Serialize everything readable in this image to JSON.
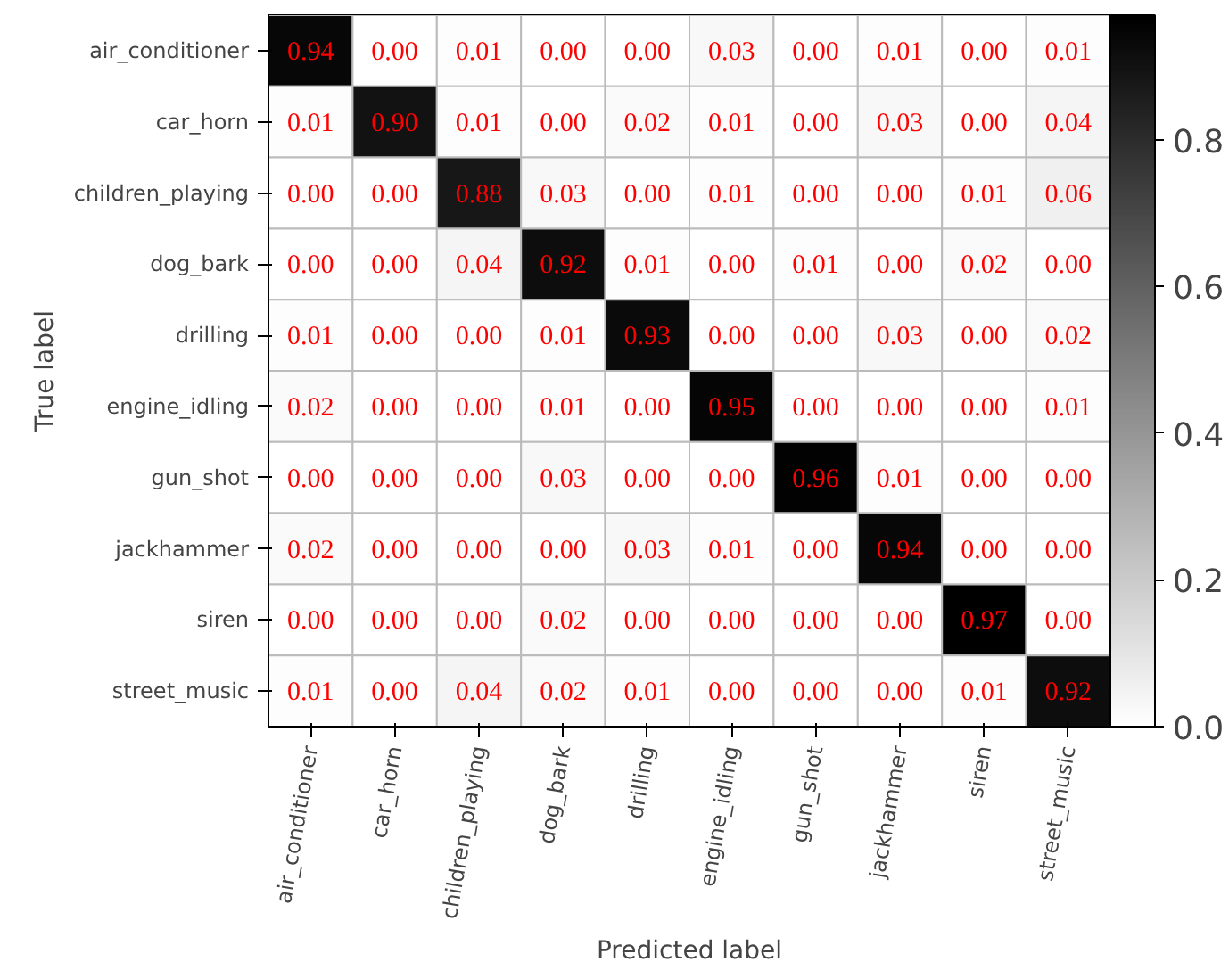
{
  "chart_data": {
    "type": "heatmap",
    "xlabel": "Predicted label",
    "ylabel": "True label",
    "categories": [
      "air_conditioner",
      "car_horn",
      "children_playing",
      "dog_bark",
      "drilling",
      "engine_idling",
      "gun_shot",
      "jackhammer",
      "siren",
      "street_music"
    ],
    "y_categories": [
      "air_conditioner",
      "car_horn",
      "children_playing",
      "dog_bark",
      "drilling",
      "engine_idling",
      "gun_shot",
      "jackhammer",
      "siren",
      "street_music"
    ],
    "cells": [
      [
        0.94,
        0.0,
        0.01,
        0.0,
        0.0,
        0.03,
        0.0,
        0.01,
        0.0,
        0.01
      ],
      [
        0.01,
        0.9,
        0.01,
        0.0,
        0.02,
        0.01,
        0.0,
        0.03,
        0.0,
        0.04
      ],
      [
        0.0,
        0.0,
        0.88,
        0.03,
        0.0,
        0.01,
        0.0,
        0.0,
        0.01,
        0.06
      ],
      [
        0.0,
        0.0,
        0.04,
        0.92,
        0.01,
        0.0,
        0.01,
        0.0,
        0.02,
        0.0
      ],
      [
        0.01,
        0.0,
        0.0,
        0.01,
        0.93,
        0.0,
        0.0,
        0.03,
        0.0,
        0.02
      ],
      [
        0.02,
        0.0,
        0.0,
        0.01,
        0.0,
        0.95,
        0.0,
        0.0,
        0.0,
        0.01
      ],
      [
        0.0,
        0.0,
        0.0,
        0.03,
        0.0,
        0.0,
        0.96,
        0.01,
        0.0,
        0.0
      ],
      [
        0.02,
        0.0,
        0.0,
        0.0,
        0.03,
        0.01,
        0.0,
        0.94,
        0.0,
        0.0
      ],
      [
        0.0,
        0.0,
        0.0,
        0.02,
        0.0,
        0.0,
        0.0,
        0.0,
        0.97,
        0.0
      ],
      [
        0.01,
        0.0,
        0.04,
        0.02,
        0.01,
        0.0,
        0.0,
        0.0,
        0.01,
        0.92
      ]
    ],
    "cell_labels": [
      [
        "0.94",
        "0.00",
        "0.01",
        "0.00",
        "0.00",
        "0.03",
        "0.00",
        "0.01",
        "0.00",
        "0.01"
      ],
      [
        "0.01",
        "0.90",
        "0.01",
        "0.00",
        "0.02",
        "0.01",
        "0.00",
        "0.03",
        "0.00",
        "0.04"
      ],
      [
        "0.00",
        "0.00",
        "0.88",
        "0.03",
        "0.00",
        "0.01",
        "0.00",
        "0.00",
        "0.01",
        "0.06"
      ],
      [
        "0.00",
        "0.00",
        "0.04",
        "0.92",
        "0.01",
        "0.00",
        "0.01",
        "0.00",
        "0.02",
        "0.00"
      ],
      [
        "0.01",
        "0.00",
        "0.00",
        "0.01",
        "0.93",
        "0.00",
        "0.00",
        "0.03",
        "0.00",
        "0.02"
      ],
      [
        "0.02",
        "0.00",
        "0.00",
        "0.01",
        "0.00",
        "0.95",
        "0.00",
        "0.00",
        "0.00",
        "0.01"
      ],
      [
        "0.00",
        "0.00",
        "0.00",
        "0.03",
        "0.00",
        "0.00",
        "0.96",
        "0.01",
        "0.00",
        "0.00"
      ],
      [
        "0.02",
        "0.00",
        "0.00",
        "0.00",
        "0.03",
        "0.01",
        "0.00",
        "0.94",
        "0.00",
        "0.00"
      ],
      [
        "0.00",
        "0.00",
        "0.00",
        "0.02",
        "0.00",
        "0.00",
        "0.00",
        "0.00",
        "0.97",
        "0.00"
      ],
      [
        "0.01",
        "0.00",
        "0.04",
        "0.02",
        "0.01",
        "0.00",
        "0.00",
        "0.00",
        "0.01",
        "0.92"
      ]
    ],
    "clim": [
      0.0,
      0.97
    ],
    "cticks": [
      {
        "value": 0.0,
        "label": "0.0"
      },
      {
        "value": 0.2,
        "label": "0.2"
      },
      {
        "value": 0.4,
        "label": "0.4"
      },
      {
        "value": 0.6,
        "label": "0.6"
      },
      {
        "value": 0.8,
        "label": "0.8"
      }
    ]
  }
}
